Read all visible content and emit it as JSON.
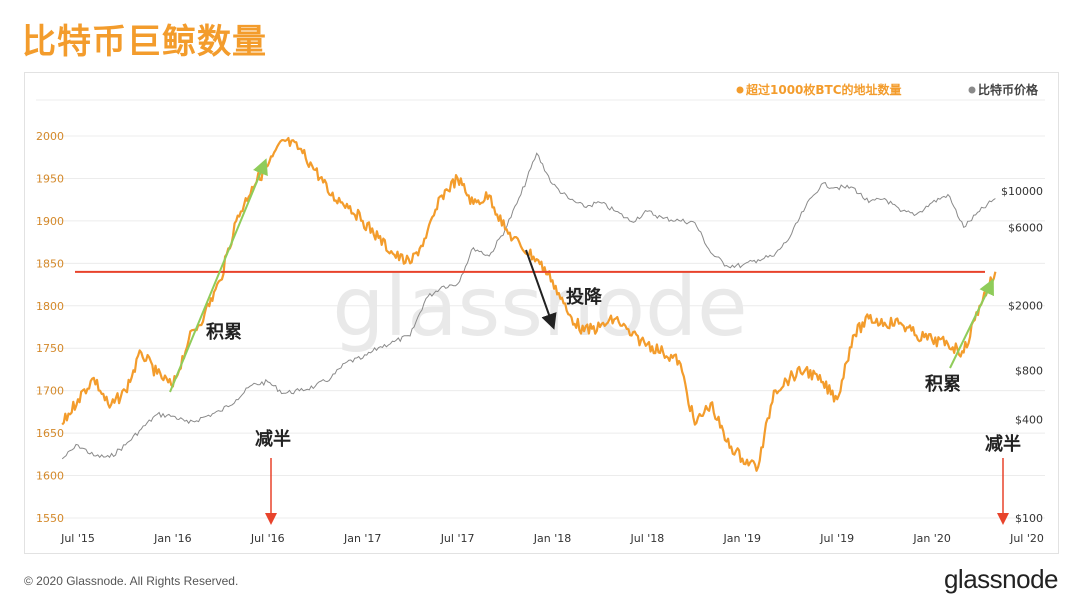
{
  "title": "比特币巨鲸数量",
  "footer": {
    "copyright": "© 2020 Glassnode. All Rights Reserved.",
    "brand": "glassnode"
  },
  "watermark": "glassnode",
  "colors": {
    "whales": "#f39c2c",
    "price": "#8a8a8a",
    "level": "#e8432b",
    "accumulate": "#8fcc5a",
    "capitulate": "#222222",
    "halving": "#e8432b"
  },
  "chart_data": {
    "type": "line",
    "legend": [
      {
        "label": "超过1000枚BTC的地址数量",
        "color": "#f39c2c"
      },
      {
        "label": "比特币价格",
        "color": "#8a8a8a"
      }
    ],
    "legend_position": "top-right",
    "x_ticks": [
      "Jul '15",
      "Jan '16",
      "Jul '16",
      "Jan '17",
      "Jul '17",
      "Jan '18",
      "Jul '18",
      "Jan '19",
      "Jul '19",
      "Jan '20",
      "Jul '20"
    ],
    "y_left": {
      "ticks": [
        2000,
        1950,
        1900,
        1850,
        1800,
        1750,
        1700,
        1650,
        1600,
        1550
      ],
      "range": [
        1550,
        2000
      ]
    },
    "y_right": {
      "ticks": [
        "$10000",
        "$6000",
        "$2000",
        "$800",
        "$400",
        "$100"
      ],
      "scale": "log"
    },
    "series": [
      {
        "name": "超过1000枚BTC的地址数量",
        "x": [
          "2015-06",
          "2015-07",
          "2015-08",
          "2015-09",
          "2015-10",
          "2015-11",
          "2015-12",
          "2016-01",
          "2016-02",
          "2016-03",
          "2016-04",
          "2016-05",
          "2016-06",
          "2016-07",
          "2016-08",
          "2016-09",
          "2016-10",
          "2016-11",
          "2016-12",
          "2017-01",
          "2017-02",
          "2017-03",
          "2017-04",
          "2017-05",
          "2017-06",
          "2017-07",
          "2017-08",
          "2017-09",
          "2017-10",
          "2017-11",
          "2017-12",
          "2018-01",
          "2018-02",
          "2018-03",
          "2018-04",
          "2018-05",
          "2018-06",
          "2018-07",
          "2018-08",
          "2018-09",
          "2018-10",
          "2018-11",
          "2018-12",
          "2019-01",
          "2019-02",
          "2019-03",
          "2019-04",
          "2019-05",
          "2019-06",
          "2019-07",
          "2019-08",
          "2019-09",
          "2019-10",
          "2019-11",
          "2019-12",
          "2020-01",
          "2020-02",
          "2020-03",
          "2020-04",
          "2020-05"
        ],
        "values": [
          1660,
          1690,
          1715,
          1680,
          1700,
          1745,
          1720,
          1705,
          1760,
          1790,
          1830,
          1900,
          1940,
          1965,
          1995,
          1985,
          1960,
          1930,
          1920,
          1900,
          1880,
          1860,
          1850,
          1880,
          1930,
          1950,
          1920,
          1930,
          1890,
          1870,
          1855,
          1830,
          1790,
          1770,
          1775,
          1785,
          1765,
          1755,
          1745,
          1735,
          1660,
          1685,
          1640,
          1620,
          1610,
          1700,
          1715,
          1725,
          1710,
          1690,
          1765,
          1785,
          1780,
          1780,
          1765,
          1760,
          1755,
          1745,
          1800,
          1840
        ]
      },
      {
        "name": "比特币价格",
        "x": [
          "2015-06",
          "2015-07",
          "2015-08",
          "2015-09",
          "2015-10",
          "2015-11",
          "2015-12",
          "2016-01",
          "2016-02",
          "2016-03",
          "2016-04",
          "2016-05",
          "2016-06",
          "2016-07",
          "2016-08",
          "2016-09",
          "2016-10",
          "2016-11",
          "2016-12",
          "2017-01",
          "2017-02",
          "2017-03",
          "2017-04",
          "2017-05",
          "2017-06",
          "2017-07",
          "2017-08",
          "2017-09",
          "2017-10",
          "2017-11",
          "2017-12",
          "2018-01",
          "2018-02",
          "2018-03",
          "2018-04",
          "2018-05",
          "2018-06",
          "2018-07",
          "2018-08",
          "2018-09",
          "2018-10",
          "2018-11",
          "2018-12",
          "2019-01",
          "2019-02",
          "2019-03",
          "2019-04",
          "2019-05",
          "2019-06",
          "2019-07",
          "2019-08",
          "2019-09",
          "2019-10",
          "2019-11",
          "2019-12",
          "2020-01",
          "2020-02",
          "2020-03",
          "2020-04",
          "2020-05"
        ],
        "values": [
          230,
          280,
          240,
          235,
          280,
          350,
          430,
          420,
          380,
          415,
          450,
          530,
          650,
          680,
          580,
          600,
          640,
          720,
          900,
          950,
          1100,
          1200,
          1300,
          2200,
          2600,
          2700,
          4500,
          4000,
          5800,
          9500,
          17000,
          11000,
          9000,
          8000,
          8500,
          7500,
          6500,
          7500,
          6800,
          6600,
          6400,
          4200,
          3500,
          3500,
          3800,
          4000,
          5200,
          8000,
          11000,
          10500,
          10500,
          8500,
          9000,
          7500,
          7200,
          8500,
          9500,
          6000,
          7500,
          9000
        ]
      }
    ],
    "annotations": [
      {
        "text": "积累",
        "type": "accumulation"
      },
      {
        "text": "投降",
        "type": "capitulation"
      },
      {
        "text": "积累",
        "type": "accumulation"
      },
      {
        "text": "减半",
        "type": "halving",
        "x": "2016-07"
      },
      {
        "text": "减半",
        "type": "halving",
        "x": "2020-05"
      }
    ],
    "reference_line": {
      "y": 1840
    }
  }
}
